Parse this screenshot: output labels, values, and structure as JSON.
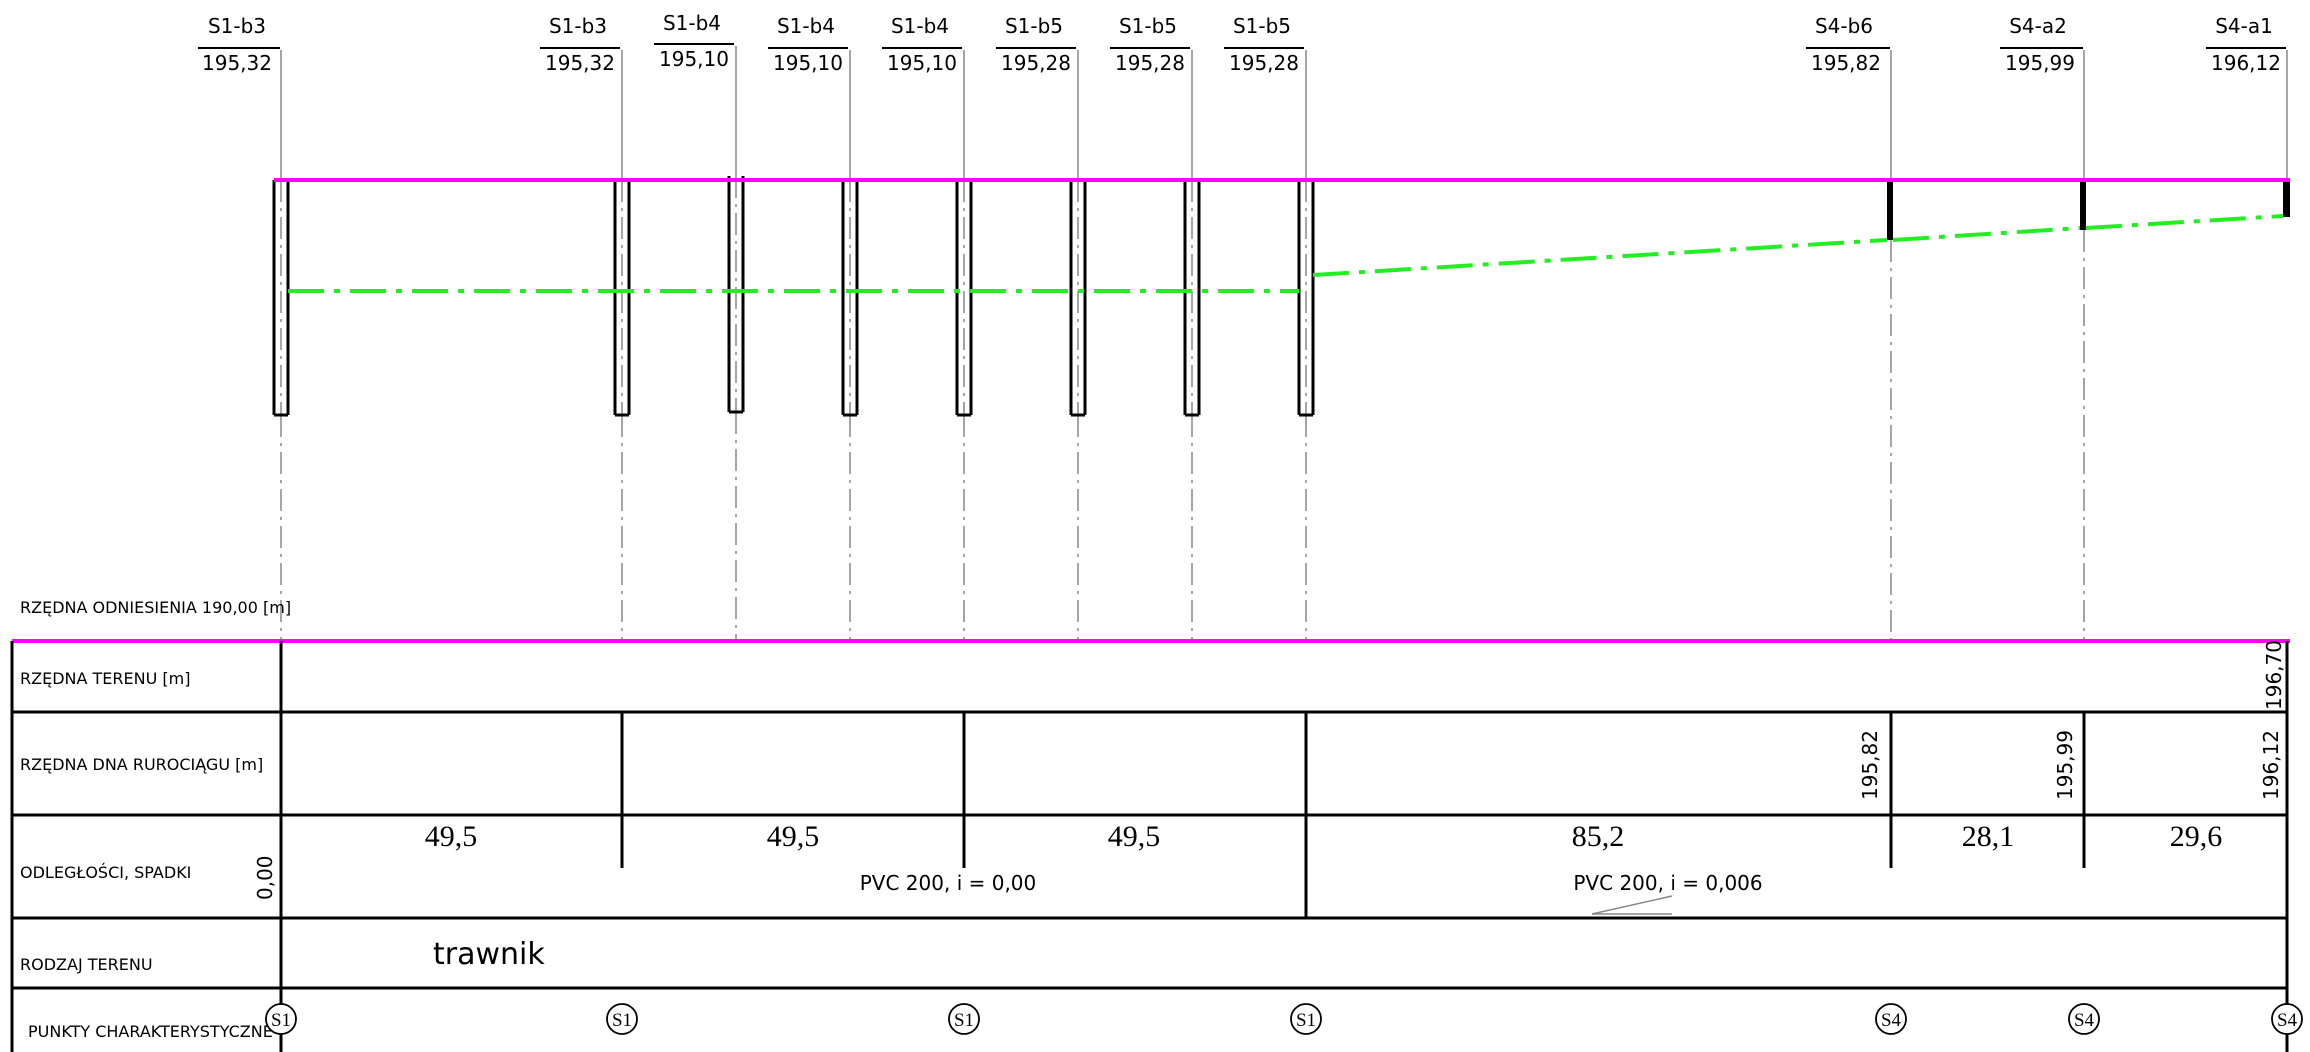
{
  "colors": {
    "terrain_line": "#ff00ff",
    "pipe_line": "#22ee22",
    "ink": "#000000",
    "guide": "#888888"
  },
  "row_labels": {
    "reference": "RZĘDNA ODNIESIENIA 190,00 [m]",
    "terrain": "RZĘDNA TERENU [m]",
    "pipe_bottom": "RZĘDNA DNA RUROCIĄGU [m]",
    "distances": "ODLEGŁOŚCI, SPADKI",
    "terrain_type": "RODZAJ TERENU",
    "points": "PUNKTY CHARAKTERYSTYCZNE"
  },
  "start_slope": "0,00",
  "wells": [
    {
      "name": "S1-b3",
      "elev": "195,32"
    },
    {
      "name": "S1-b3",
      "elev": "195,32"
    },
    {
      "name": "S1-b4",
      "elev": "195,10"
    },
    {
      "name": "S1-b4",
      "elev": "195,10"
    },
    {
      "name": "S1-b4",
      "elev": "195,10"
    },
    {
      "name": "S1-b5",
      "elev": "195,28"
    },
    {
      "name": "S1-b5",
      "elev": "195,28"
    },
    {
      "name": "S1-b5",
      "elev": "195,28"
    },
    {
      "name": "S4-b6",
      "elev": "195,82"
    },
    {
      "name": "S4-a2",
      "elev": "195,99"
    },
    {
      "name": "S4-a1",
      "elev": "196,12"
    }
  ],
  "terrain_elevations": [
    "196,70"
  ],
  "pipe_bottom_values": [
    "195,82",
    "195,99",
    "196,12"
  ],
  "distances": [
    "49,5",
    "49,5",
    "49,5",
    "85,2",
    "28,1",
    "29,6"
  ],
  "slopes": [
    "PVC 200, i = 0,00",
    "PVC 200, i = 0,006"
  ],
  "terrain_type": "trawnik",
  "points": [
    "S1",
    "S1",
    "S1",
    "S1",
    "S4",
    "S4",
    "S4"
  ]
}
